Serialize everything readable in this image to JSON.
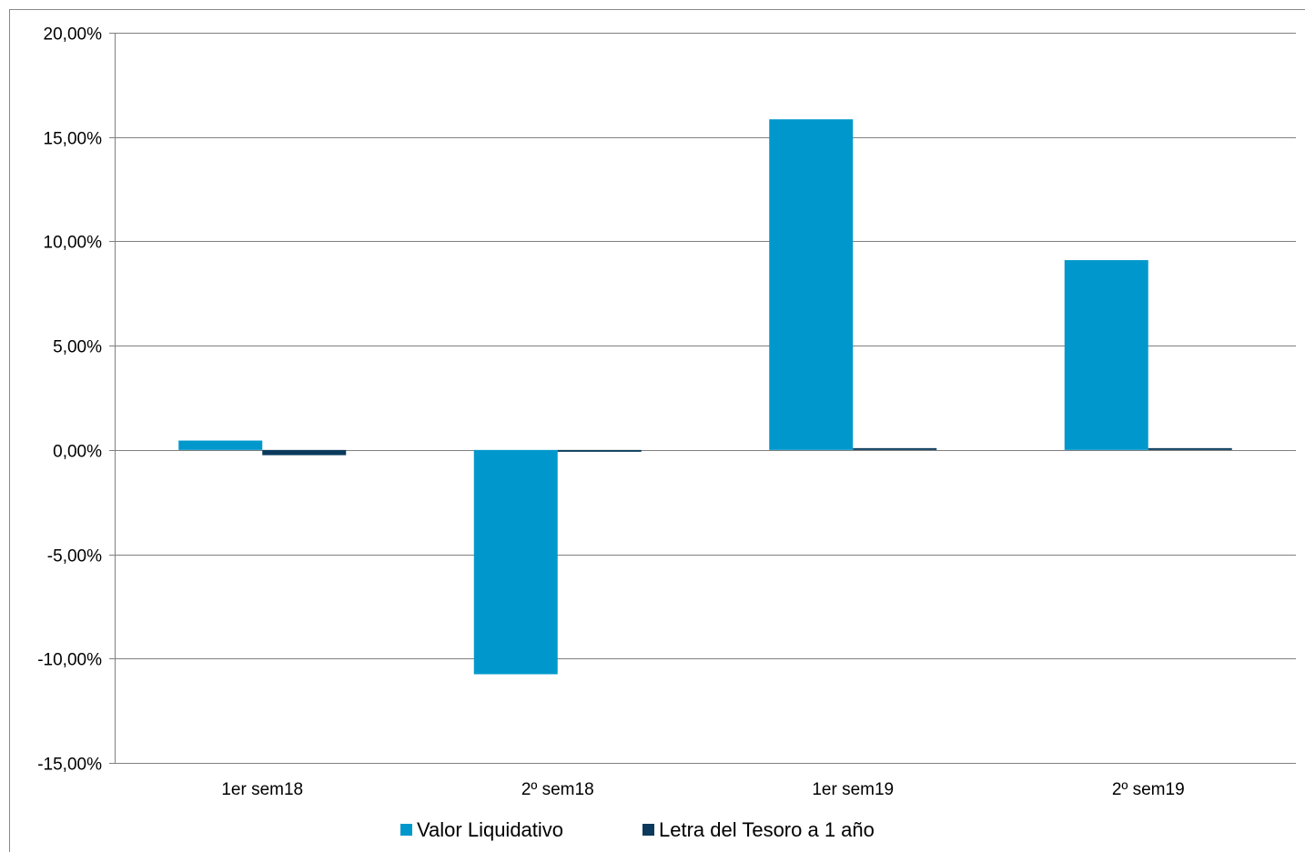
{
  "chart_data": {
    "type": "bar",
    "categories": [
      "1er sem18",
      "2º sem18",
      "1er sem19",
      "2º sem19"
    ],
    "series": [
      {
        "name": "Valor Liquidativo",
        "color": "#0098CC",
        "values": [
          0.45,
          -10.75,
          15.85,
          9.1
        ]
      },
      {
        "name": "Letra del Tesoro a 1 año",
        "color": "#0B3A5C",
        "values": [
          -0.25,
          -0.05,
          0.02,
          0.05
        ]
      }
    ],
    "ylim": [
      -15,
      20
    ],
    "yticks": [
      -15,
      -10,
      -5,
      0,
      5,
      10,
      15,
      20
    ],
    "ytick_labels": [
      "-15,00%",
      "-10,00%",
      "-5,00%",
      "0,00%",
      "5,00%",
      "10,00%",
      "15,00%",
      "20,00%"
    ],
    "grid": true,
    "legend": "bottom",
    "title": "",
    "xlabel": "",
    "ylabel": ""
  }
}
